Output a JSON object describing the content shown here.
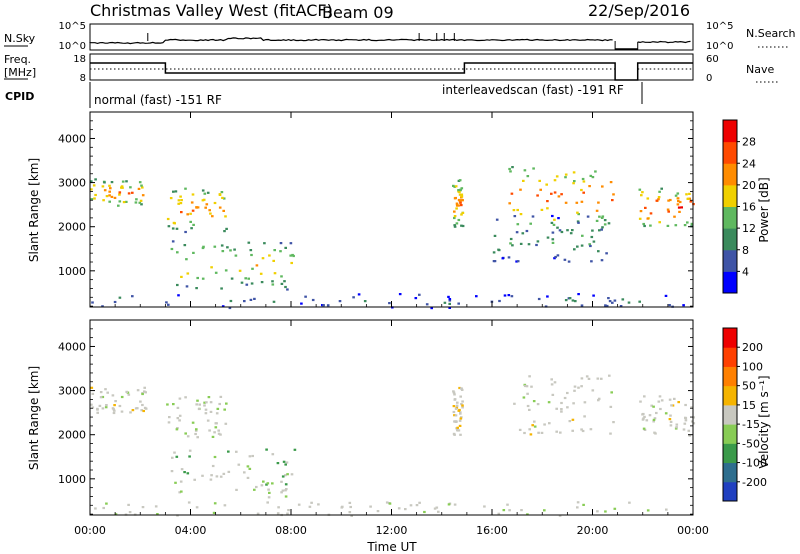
{
  "header": {
    "site_title": "Christmas Valley West (fitACF)",
    "beam": "Beam 09",
    "date": "22/Sep/2016"
  },
  "panels": {
    "nsky": {
      "label": "N.Sky",
      "right_label": "N.Search",
      "left_ticks": [
        "10^5",
        "10^0"
      ],
      "right_ticks": [
        "10^5",
        "10^0"
      ]
    },
    "freq": {
      "label_line1": "Freq.",
      "label_line2": "[MHz]",
      "left_ticks": [
        "18",
        "8"
      ],
      "right_ticks": [
        "60",
        "0"
      ],
      "right_label": "Nave"
    },
    "cpid": {
      "label": "CPID",
      "segments": [
        {
          "text": "normal (fast) -151 RF",
          "start_hour": 0,
          "end_hour": 21
        },
        {
          "text": "interleavedscan (fast) -191 RF",
          "start_hour": 15,
          "end_hour": 21.8
        }
      ]
    }
  },
  "chart_data": [
    {
      "type": "heatmap",
      "title": "",
      "xlabel": "",
      "ylabel": "Slant Range [km]",
      "xlim": [
        0,
        24
      ],
      "ylim": [
        180,
        4600
      ],
      "y_ticks": [
        1000,
        2000,
        3000,
        4000
      ],
      "grid": false,
      "colorbar": {
        "label": "Power [dB]",
        "ticks": [
          4,
          8,
          12,
          16,
          20,
          24,
          28
        ],
        "range": [
          0,
          32
        ],
        "colors": [
          "#0000ff",
          "#3f54a6",
          "#3a8a5c",
          "#5fb85f",
          "#f0d000",
          "#ff8c00",
          "#ff4a00",
          "#ee0000"
        ]
      },
      "scatter_regions": [
        {
          "start_hour": 0.0,
          "end_hour": 2.2,
          "range_low": 2500,
          "range_high": 3100,
          "peak_value": 24
        },
        {
          "start_hour": 3.0,
          "end_hour": 5.4,
          "range_low": 1900,
          "range_high": 2900,
          "peak_value": 24
        },
        {
          "start_hour": 3.2,
          "end_hour": 8.2,
          "range_low": 600,
          "range_high": 1700,
          "peak_value": 20
        },
        {
          "start_hour": 14.4,
          "end_hour": 14.8,
          "range_low": 2000,
          "range_high": 3100,
          "peak_value": 24
        },
        {
          "start_hour": 16.6,
          "end_hour": 20.8,
          "range_low": 2000,
          "range_high": 3400,
          "peak_value": 26
        },
        {
          "start_hour": 16.0,
          "end_hour": 20.6,
          "range_low": 1200,
          "range_high": 2300,
          "peak_value": 12
        },
        {
          "start_hour": 21.8,
          "end_hour": 24.0,
          "range_low": 2000,
          "range_high": 2900,
          "peak_value": 28
        },
        {
          "start_hour": 0.0,
          "end_hour": 24.0,
          "range_low": 180,
          "range_high": 500,
          "peak_value": 8
        }
      ]
    },
    {
      "type": "heatmap",
      "title": "",
      "xlabel": "Time UT",
      "ylabel": "Slant Range [km]",
      "xlim": [
        0,
        24
      ],
      "ylim": [
        180,
        4600
      ],
      "x_ticks": [
        "00:00",
        "04:00",
        "08:00",
        "12:00",
        "16:00",
        "20:00",
        "00:00"
      ],
      "y_ticks": [
        1000,
        2000,
        3000,
        4000
      ],
      "grid": false,
      "colorbar": {
        "label": "Velocity [m s⁻¹]",
        "ticks": [
          200,
          100,
          50,
          15,
          -15,
          -50,
          -100,
          -200
        ],
        "range": [
          -250,
          250
        ],
        "colors": [
          "#2040c0",
          "#2e6e8e",
          "#3a9a4a",
          "#88cc55",
          "#c8c8c0",
          "#f5b400",
          "#ff8000",
          "#ff4000",
          "#ee0000"
        ]
      },
      "scatter_regions": [
        {
          "start_hour": 0.0,
          "end_hour": 2.2,
          "range_low": 2500,
          "range_high": 3100,
          "peak_value": 0
        },
        {
          "start_hour": 3.0,
          "end_hour": 5.4,
          "range_low": 1900,
          "range_high": 2900,
          "peak_value": -30
        },
        {
          "start_hour": 3.2,
          "end_hour": 8.2,
          "range_low": 600,
          "range_high": 1700,
          "peak_value": -80
        },
        {
          "start_hour": 14.4,
          "end_hour": 14.8,
          "range_low": 2000,
          "range_high": 3100,
          "peak_value": 40
        },
        {
          "start_hour": 16.6,
          "end_hour": 20.8,
          "range_low": 2000,
          "range_high": 3400,
          "peak_value": 0
        },
        {
          "start_hour": 21.8,
          "end_hour": 24.0,
          "range_low": 2000,
          "range_high": 2900,
          "peak_value": 0
        },
        {
          "start_hour": 0.0,
          "end_hour": 24.0,
          "range_low": 180,
          "range_high": 500,
          "peak_value": -30
        }
      ]
    }
  ]
}
